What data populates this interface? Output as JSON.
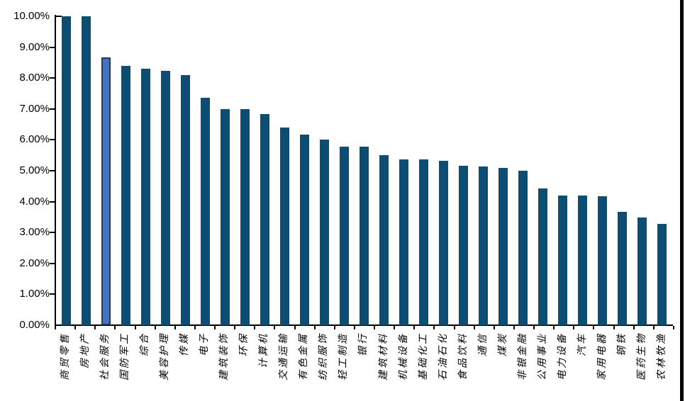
{
  "chart_data": {
    "type": "bar",
    "title": "",
    "xlabel": "",
    "ylabel": "",
    "unit": "%",
    "ylim": [
      0,
      10
    ],
    "ytick_step": 1,
    "grid": false,
    "legend": null,
    "ytick_labels": [
      "10.00%",
      "9.00%",
      "8.00%",
      "7.00%",
      "6.00%",
      "5.00%",
      "4.00%",
      "3.00%",
      "2.00%",
      "1.00%",
      "0.00%"
    ],
    "categories": [
      "商贸零售",
      "房地产",
      "社会服务",
      "国防军工",
      "综合",
      "美容护理",
      "传媒",
      "电子",
      "建筑装饰",
      "环保",
      "计算机",
      "交通运输",
      "有色金属",
      "纺织服饰",
      "轻工制造",
      "银行",
      "建筑材料",
      "机械设备",
      "基础化工",
      "石油石化",
      "食品饮料",
      "通信",
      "煤炭",
      "非银金融",
      "公用事业",
      "电力设备",
      "汽车",
      "家用电器",
      "钢铁",
      "医药生物",
      "农林牧渔"
    ],
    "values": [
      10.0,
      10.0,
      8.67,
      8.4,
      8.31,
      8.24,
      8.1,
      7.37,
      7.0,
      7.0,
      6.83,
      6.41,
      6.17,
      6.01,
      5.78,
      5.78,
      5.51,
      5.37,
      5.36,
      5.32,
      5.15,
      5.13,
      5.1,
      5.01,
      4.42,
      4.19,
      4.19,
      4.17,
      3.66,
      3.48,
      3.27
    ],
    "colors": {
      "bar": "#0B4D73",
      "highlight_fill": "#4472C4",
      "highlight_border": "#1F3864",
      "axis": "#000000"
    },
    "highlight": {
      "category": "社会服务",
      "index": 2
    }
  }
}
